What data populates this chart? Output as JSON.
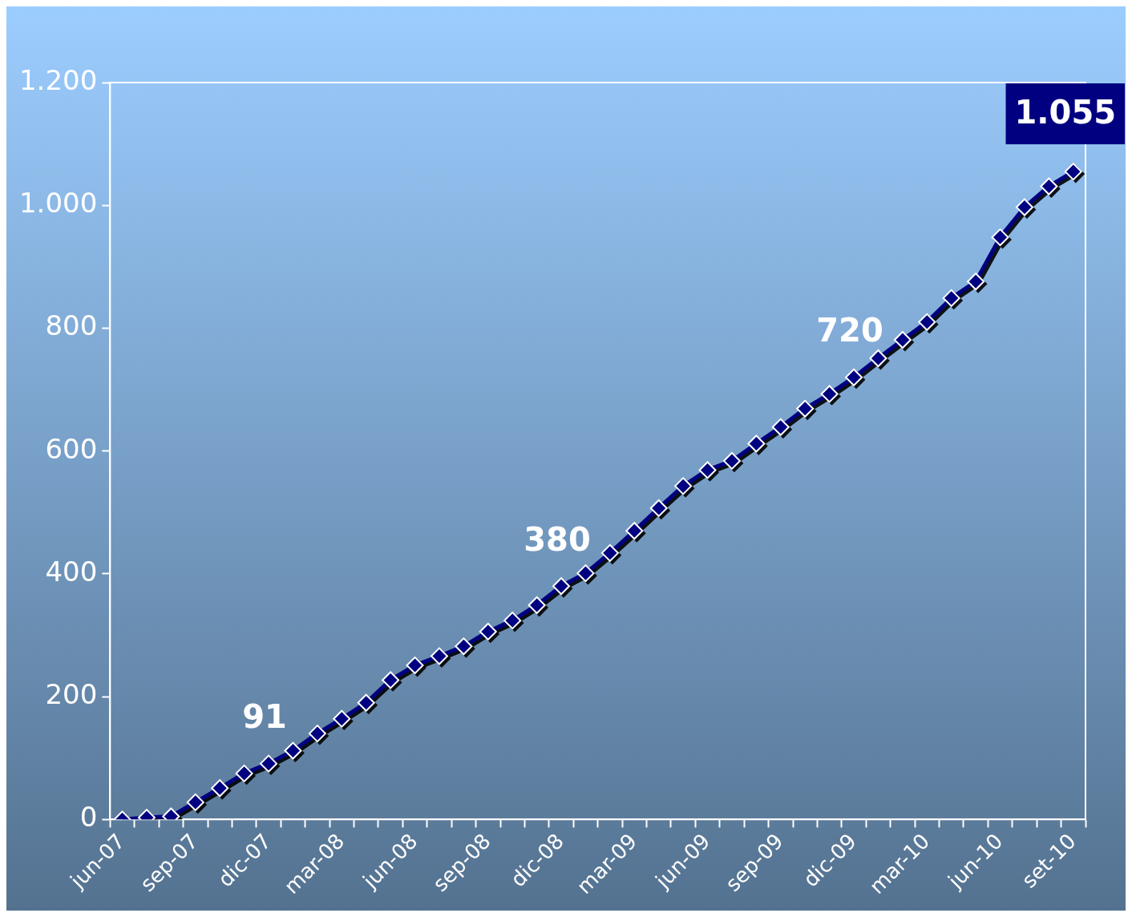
{
  "chart_data": {
    "type": "line",
    "categories": [
      "jun-07",
      null,
      null,
      "sep-07",
      null,
      null,
      "dic-07",
      null,
      null,
      "mar-08",
      null,
      null,
      "jun-08",
      null,
      null,
      "sep-08",
      null,
      null,
      "dic-08",
      null,
      null,
      "mar-09",
      null,
      null,
      "jun-09",
      null,
      null,
      "sep-09",
      null,
      null,
      "dic-09",
      null,
      null,
      "mar-10",
      null,
      null,
      "jun-10",
      null,
      null,
      "set-10"
    ],
    "series": [
      {
        "color": "#000080",
        "values": [
          0,
          3,
          5,
          28,
          51,
          75,
          91,
          112,
          140,
          164,
          190,
          227,
          251,
          266,
          282,
          306,
          324,
          349,
          380,
          401,
          434,
          470,
          507,
          543,
          569,
          584,
          612,
          639,
          669,
          693,
          720,
          751,
          781,
          810,
          849,
          876,
          948,
          997,
          1031,
          1055
        ],
        "value_labels": [
          null,
          null,
          null,
          null,
          null,
          null,
          "91",
          null,
          null,
          null,
          null,
          null,
          null,
          null,
          null,
          null,
          null,
          null,
          "380",
          null,
          null,
          null,
          null,
          null,
          null,
          null,
          null,
          null,
          null,
          null,
          "720",
          null,
          null,
          null,
          null,
          null,
          null,
          null,
          null,
          "1.055"
        ]
      }
    ],
    "ylim": [
      0,
      1200
    ],
    "yticks": [
      0,
      200,
      400,
      600,
      800,
      {
        "value": 1000,
        "label": "1.000"
      },
      {
        "value": 1200,
        "label": "1.200"
      }
    ],
    "grid": false,
    "legend": false,
    "marker": "diamond",
    "line_style": "solid"
  }
}
